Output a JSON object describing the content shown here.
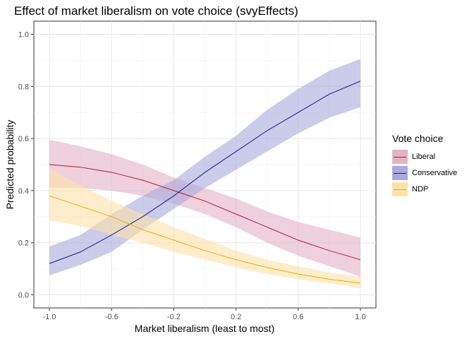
{
  "chart_data": {
    "type": "line",
    "title": "Effect of market liberalism on vote choice (svyEffects)",
    "xlabel": "Market liberalism (least to most)",
    "ylabel": "Predicted probability",
    "xlim": [
      -1.1,
      1.1
    ],
    "ylim": [
      -0.05,
      1.05
    ],
    "x_ticks": [
      -1.0,
      -0.6,
      -0.2,
      0.2,
      0.6,
      1.0
    ],
    "x_tick_labels": [
      "-1.0",
      "-0.6",
      "-0.2",
      "0.2",
      "0.6",
      "1.0"
    ],
    "y_ticks": [
      0.0,
      0.2,
      0.4,
      0.6,
      0.8,
      1.0
    ],
    "y_tick_labels": [
      "0.0",
      "0.2",
      "0.4",
      "0.6",
      "0.8",
      "1.0"
    ],
    "grid": true,
    "legend_title": "Vote choice",
    "legend_position": "right",
    "x": [
      -1.0,
      -0.8,
      -0.6,
      -0.4,
      -0.2,
      0.0,
      0.2,
      0.4,
      0.6,
      0.8,
      1.0
    ],
    "series": [
      {
        "name": "Liberal",
        "color": "#b5163e",
        "fill": "#e3b3c4",
        "values": [
          0.5,
          0.49,
          0.47,
          0.44,
          0.4,
          0.36,
          0.31,
          0.26,
          0.21,
          0.17,
          0.135
        ],
        "lower": [
          0.41,
          0.41,
          0.4,
          0.38,
          0.35,
          0.31,
          0.26,
          0.2,
          0.15,
          0.11,
          0.07
        ],
        "upper": [
          0.595,
          0.57,
          0.54,
          0.5,
          0.45,
          0.41,
          0.37,
          0.32,
          0.28,
          0.25,
          0.22
        ]
      },
      {
        "name": "Conservative",
        "color": "#1a1a8c",
        "fill": "#a9a9dc",
        "values": [
          0.12,
          0.165,
          0.23,
          0.3,
          0.38,
          0.47,
          0.55,
          0.63,
          0.7,
          0.77,
          0.82
        ],
        "lower": [
          0.075,
          0.115,
          0.165,
          0.25,
          0.33,
          0.41,
          0.48,
          0.55,
          0.62,
          0.68,
          0.72
        ],
        "upper": [
          0.185,
          0.23,
          0.31,
          0.38,
          0.44,
          0.53,
          0.61,
          0.71,
          0.79,
          0.86,
          0.905
        ]
      },
      {
        "name": "NDP",
        "color": "#f2a900",
        "fill": "#fde1a9",
        "values": [
          0.38,
          0.34,
          0.3,
          0.25,
          0.21,
          0.17,
          0.135,
          0.105,
          0.08,
          0.06,
          0.045
        ],
        "lower": [
          0.285,
          0.265,
          0.23,
          0.2,
          0.165,
          0.135,
          0.105,
          0.08,
          0.06,
          0.045,
          0.025
        ],
        "upper": [
          0.485,
          0.42,
          0.36,
          0.31,
          0.26,
          0.215,
          0.17,
          0.135,
          0.11,
          0.085,
          0.07
        ]
      }
    ]
  }
}
